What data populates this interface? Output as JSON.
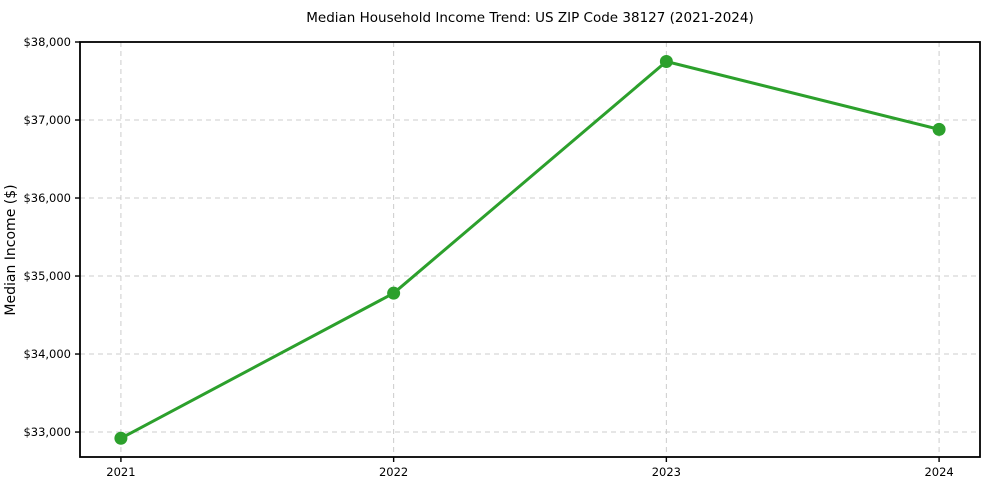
{
  "figure": {
    "background": "#ffffff",
    "line_color": "#2ca02c",
    "marker_color": "#2ca02c",
    "grid_color": "#cccccc",
    "axis_color": "#000000",
    "text_color": "#000000"
  },
  "chart_data": {
    "type": "line",
    "title": "Median Household Income Trend: US ZIP Code 38127 (2021-2024)",
    "xlabel": "",
    "ylabel": "Median Income ($)",
    "x": [
      2021,
      2022,
      2023,
      2024
    ],
    "values": [
      32920,
      34780,
      37750,
      36880
    ],
    "series": [
      {
        "name": "Median Household Income",
        "values": [
          32920,
          34780,
          37750,
          36880
        ]
      }
    ],
    "x_tick_labels": [
      "2021",
      "2022",
      "2023",
      "2024"
    ],
    "y_ticks": [
      33000,
      34000,
      35000,
      36000,
      37000,
      38000
    ],
    "y_tick_labels": [
      "$33,000",
      "$34,000",
      "$35,000",
      "$36,000",
      "$37,000",
      "$38,000"
    ],
    "xlim": [
      2020.85,
      2024.15
    ],
    "ylim": [
      32680,
      38000
    ],
    "grid": true,
    "grid_style": "dashed",
    "legend": "none",
    "marker": "circle",
    "marker_radius": 6.5
  }
}
